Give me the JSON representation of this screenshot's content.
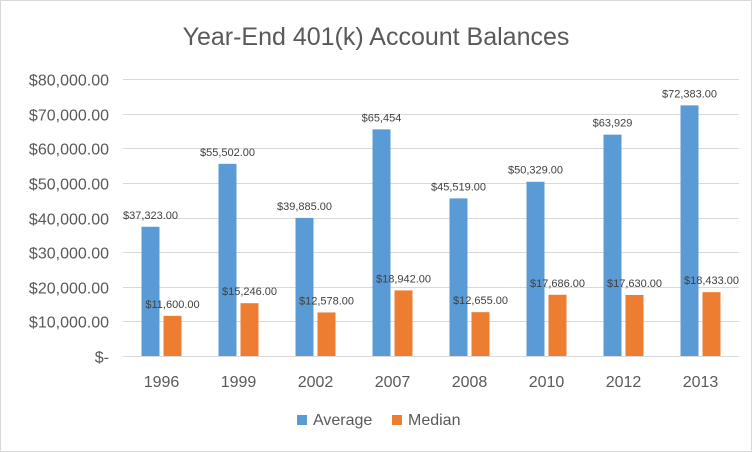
{
  "chart_data": {
    "type": "bar",
    "title": "Year-End 401(k) Account Balances",
    "categories": [
      "1996",
      "1999",
      "2002",
      "2007",
      "2008",
      "2010",
      "2012",
      "2013"
    ],
    "series": [
      {
        "name": "Average",
        "color": "#5b9bd5",
        "values": [
          37323,
          55502,
          39885,
          65454,
          45519,
          50329,
          63929,
          72383
        ],
        "labels": [
          "$37,323.00",
          "$55,502.00",
          "$39,885.00",
          "$65,454",
          "$45,519.00",
          "$50,329.00",
          "$63,929",
          "$72,383.00"
        ]
      },
      {
        "name": "Median",
        "color": "#ed7d31",
        "values": [
          11600,
          15246,
          12578,
          18942,
          12655,
          17686,
          17630,
          18433
        ],
        "labels": [
          "$11,600.00",
          "$15,246.00",
          "$12,578.00",
          "$18,942.00",
          "$12,655.00",
          "$17,686.00",
          "$17,630.00",
          "$18,433.00"
        ]
      }
    ],
    "ylim": [
      0,
      80000
    ],
    "y_ticks": [
      0,
      10000,
      20000,
      30000,
      40000,
      50000,
      60000,
      70000,
      80000
    ],
    "y_tick_labels": [
      "$-",
      "$10,000.00",
      "$20,000.00",
      "$30,000.00",
      "$40,000.00",
      "$50,000.00",
      "$60,000.00",
      "$70,000.00",
      "$80,000.00"
    ],
    "grid": true,
    "legend_position": "bottom"
  }
}
